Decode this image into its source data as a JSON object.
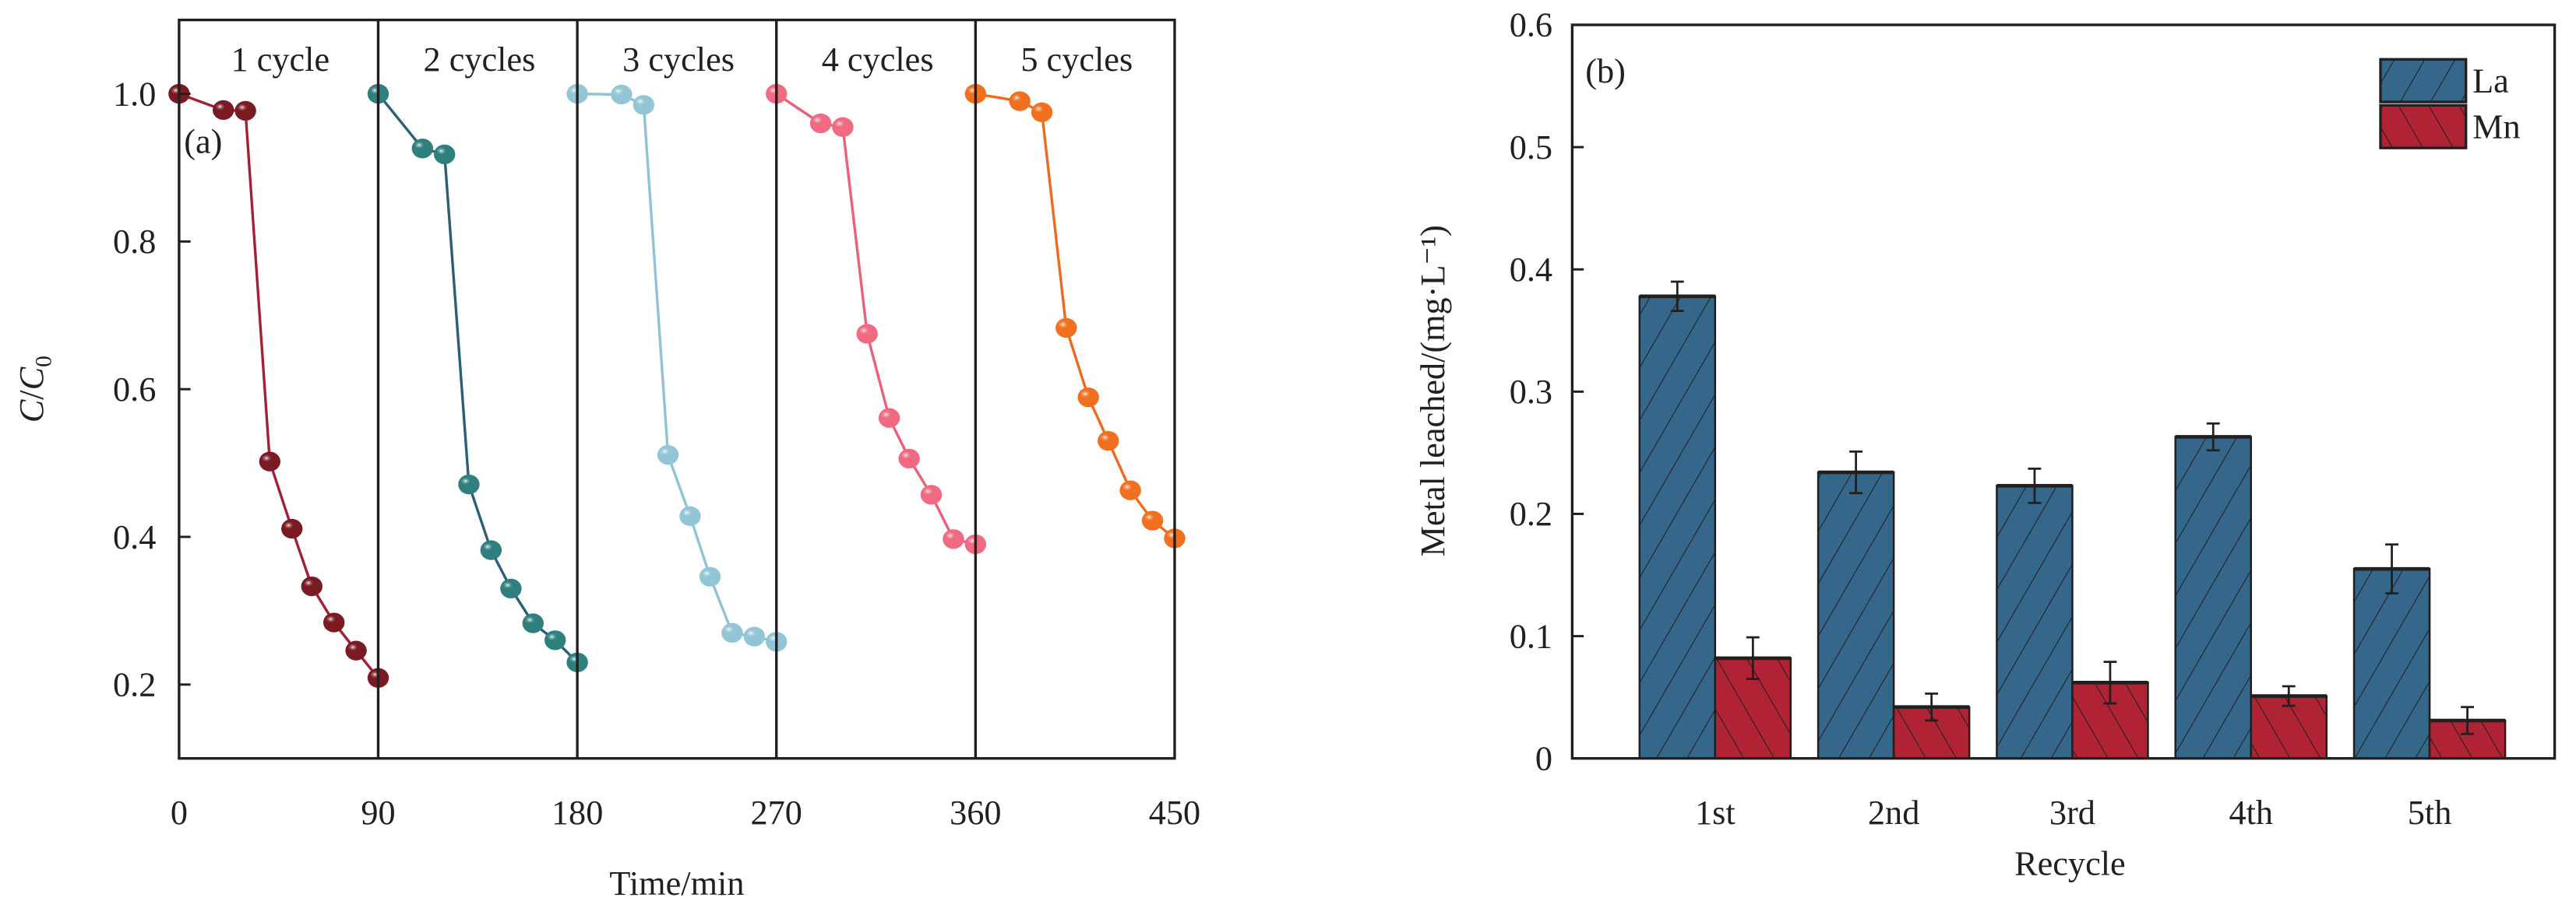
{
  "chart_data": [
    {
      "panel": "(a)",
      "type": "line",
      "xlabel": "Time/min",
      "ylabel_main": "C",
      "ylabel_sep": "/",
      "ylabel_sub_main": "C",
      "ylabel_sub": "0",
      "xlim": [
        0,
        450
      ],
      "ylim": [
        0.1,
        1.1
      ],
      "x_ticks": [
        0,
        90,
        180,
        270,
        360,
        450
      ],
      "x_tick_labels": [
        "0",
        "90",
        "180",
        "270",
        "360",
        "450"
      ],
      "y_ticks": [
        0.2,
        0.4,
        0.6,
        0.8,
        1.0
      ],
      "y_tick_labels": [
        "0.2",
        "0.4",
        "0.6",
        "0.8",
        "1.0"
      ],
      "cycle_separators": [
        90,
        180,
        270,
        360
      ],
      "grid": false,
      "series": [
        {
          "name": "1 cycle",
          "color": "#a31f34",
          "marker": "#7a1a22",
          "x": [
            0,
            20,
            30,
            41,
            51,
            60,
            70,
            80,
            90
          ],
          "y": [
            1.0,
            0.978,
            0.977,
            0.502,
            0.411,
            0.333,
            0.284,
            0.246,
            0.209
          ]
        },
        {
          "name": "2 cycles",
          "color": "#2b5f78",
          "marker": "#2f7f7f",
          "x": [
            90,
            110,
            120,
            131,
            141,
            150,
            160,
            170,
            180
          ],
          "y": [
            1.0,
            0.926,
            0.918,
            0.471,
            0.382,
            0.33,
            0.283,
            0.26,
            0.23
          ]
        },
        {
          "name": "3 cycles",
          "color": "#8fc4d4",
          "marker": "#92c6d6",
          "x": [
            180,
            200,
            210,
            221,
            231,
            240,
            250,
            260,
            270
          ],
          "y": [
            1.0,
            0.999,
            0.985,
            0.511,
            0.428,
            0.346,
            0.27,
            0.265,
            0.258
          ]
        },
        {
          "name": "4 cycles",
          "color": "#ec5f7a",
          "marker": "#f06a82",
          "x": [
            270,
            290,
            300,
            311,
            321,
            330,
            340,
            350,
            360
          ],
          "y": [
            1.0,
            0.96,
            0.955,
            0.675,
            0.561,
            0.506,
            0.457,
            0.397,
            0.39
          ]
        },
        {
          "name": "5 cycles",
          "color": "#ef6a1f",
          "marker": "#f07020",
          "x": [
            360,
            380,
            390,
            401,
            411,
            420,
            430,
            440,
            450
          ],
          "y": [
            1.0,
            0.99,
            0.975,
            0.683,
            0.589,
            0.53,
            0.463,
            0.422,
            0.398
          ]
        }
      ]
    },
    {
      "panel": "(b)",
      "type": "bar",
      "xlabel": "Recycle",
      "ylabel": "Metal leached/(mg·L⁻¹)",
      "ylim": [
        0,
        0.6
      ],
      "y_ticks": [
        0,
        0.1,
        0.2,
        0.3,
        0.4,
        0.5,
        0.6
      ],
      "y_tick_labels": [
        "0",
        "0.1",
        "0.2",
        "0.3",
        "0.4",
        "0.5",
        "0.6"
      ],
      "categories": [
        "1st",
        "2nd",
        "3rd",
        "4th",
        "5th"
      ],
      "legend_position": "top-right",
      "grid": false,
      "series": [
        {
          "name": "La",
          "color": "#35678a",
          "hatch": "forward-diagonal",
          "values": [
            0.378,
            0.234,
            0.223,
            0.263,
            0.155
          ],
          "errors": [
            0.012,
            0.017,
            0.014,
            0.011,
            0.02
          ]
        },
        {
          "name": "Mn",
          "color": "#b02335",
          "hatch": "back-diagonal",
          "values": [
            0.082,
            0.042,
            0.062,
            0.051,
            0.031
          ],
          "errors": [
            0.017,
            0.011,
            0.017,
            0.008,
            0.011
          ]
        }
      ]
    }
  ]
}
